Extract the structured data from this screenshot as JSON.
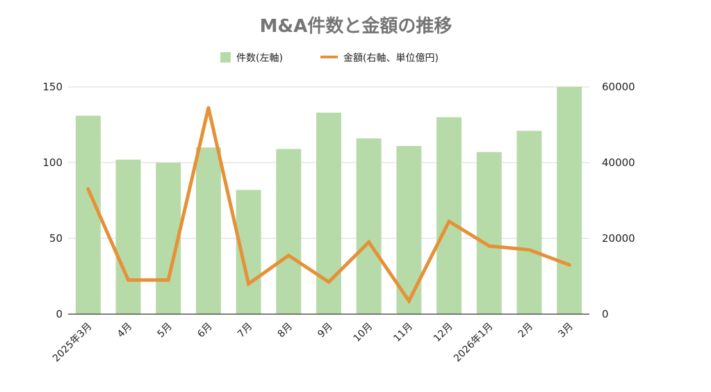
{
  "chart_data": {
    "type": "bar+line",
    "title": "M&A件数と金額の推移",
    "categories": [
      "2025年3月",
      "4月",
      "5月",
      "6月",
      "7月",
      "8月",
      "9月",
      "10月",
      "11月",
      "12月",
      "2026年1月",
      "2月",
      "3月"
    ],
    "series": [
      {
        "name": "件数(左軸)",
        "type": "bar",
        "axis": "left",
        "color": "#b7dba8",
        "values": [
          131,
          102,
          100,
          110,
          82,
          109,
          133,
          116,
          111,
          130,
          107,
          121,
          150
        ]
      },
      {
        "name": "金額(右軸、単位億円)",
        "type": "line",
        "axis": "right",
        "color": "#e69138",
        "values": [
          33000,
          9000,
          9000,
          54500,
          8000,
          15500,
          8500,
          19000,
          3500,
          24500,
          18000,
          17000,
          13000
        ]
      }
    ],
    "y_left": {
      "ylim": [
        0,
        150
      ],
      "ticks": [
        "0",
        "50",
        "100",
        "150"
      ]
    },
    "y_right": {
      "ylim": [
        0,
        60000
      ],
      "ticks": [
        "0",
        "20000",
        "40000",
        "60000"
      ]
    },
    "grid": true,
    "legend_position": "top-center"
  }
}
